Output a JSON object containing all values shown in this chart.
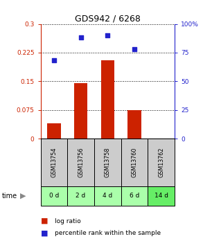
{
  "title": "GDS942 / 6268",
  "samples": [
    "GSM13754",
    "GSM13756",
    "GSM13758",
    "GSM13760",
    "GSM13762"
  ],
  "time_labels": [
    "0 d",
    "2 d",
    "4 d",
    "6 d",
    "14 d"
  ],
  "log_ratio": [
    0.04,
    0.145,
    0.205,
    0.075,
    0.0
  ],
  "percentile_rank": [
    68,
    88,
    90,
    78,
    0
  ],
  "bar_color": "#cc2200",
  "dot_color": "#2222cc",
  "left_yticks": [
    0,
    0.075,
    0.15,
    0.225,
    0.3
  ],
  "left_yticklabels": [
    "0",
    "0.075",
    "0.15",
    "0.225",
    "0.3"
  ],
  "right_yticks": [
    0,
    25,
    50,
    75,
    100
  ],
  "right_yticklabels": [
    "0",
    "25",
    "50",
    "75",
    "100%"
  ],
  "left_ylim": [
    0,
    0.3
  ],
  "right_ylim": [
    0,
    100
  ],
  "sample_box_color": "#cccccc",
  "time_box_color": "#aaffaa",
  "time_box_highlight": "#66ee66",
  "left_axis_color": "#cc2200",
  "right_axis_color": "#2222cc"
}
